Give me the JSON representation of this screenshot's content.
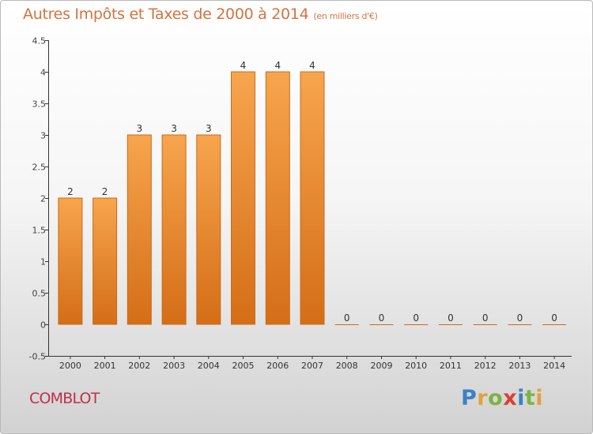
{
  "header": {
    "title": "Autres Impôts et Taxes de 2000 à 2014",
    "unit": "(en milliers d'€)"
  },
  "commune": "COMBLOT",
  "logo": {
    "letters": [
      {
        "char": "P",
        "color": "#3b82c4"
      },
      {
        "char": "r",
        "color": "#e2a23a"
      },
      {
        "char": "o",
        "color": "#7cb342"
      },
      {
        "char": "x",
        "color": "#d9412e"
      },
      {
        "char": "i",
        "color": "#3b82c4"
      },
      {
        "char": "t",
        "color": "#7cb342"
      },
      {
        "char": "i",
        "color": "#e2a23a"
      }
    ]
  },
  "colors": {
    "bar_top": "#f7a54e",
    "bar_bottom": "#d46e17",
    "bar_border": "#cc6a16",
    "title": "#d4733e",
    "commune": "#c0304a"
  },
  "chart_data": {
    "type": "bar",
    "categories": [
      "2000",
      "2001",
      "2002",
      "2003",
      "2004",
      "2005",
      "2006",
      "2007",
      "2008",
      "2009",
      "2010",
      "2011",
      "2012",
      "2013",
      "2014"
    ],
    "values": [
      2,
      2,
      3,
      3,
      3,
      4,
      4,
      4,
      0,
      0,
      0,
      0,
      0,
      0,
      0
    ],
    "data_labels": [
      "2",
      "2",
      "3",
      "3",
      "3",
      "4",
      "4",
      "4",
      "0",
      "0",
      "0",
      "0",
      "0",
      "0",
      "0"
    ],
    "yticks": [
      "-0.5",
      "0",
      "0.5",
      "1",
      "1.5",
      "2",
      "2.5",
      "3",
      "3.5",
      "4",
      "4.5"
    ],
    "ylim": [
      -0.5,
      4.5
    ],
    "grid": false,
    "legend": "none"
  }
}
